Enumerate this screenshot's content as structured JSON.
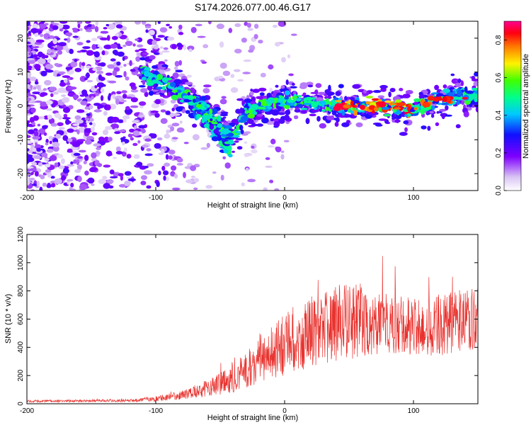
{
  "title": "S174.2026.077.00.46.G17",
  "chart_data": [
    {
      "type": "heatmap",
      "name": "spectrogram",
      "xlabel": "Height of straight line (km)",
      "ylabel": "Frequency (Hz)",
      "xlim": [
        -200,
        150
      ],
      "ylim": [
        -25,
        25
      ],
      "x_ticks": [
        -200,
        -100,
        0,
        100
      ],
      "y_ticks": [
        -20,
        -10,
        0,
        10,
        20
      ],
      "colorbar": {
        "label": "Normalized spectral amplitude",
        "range": [
          0,
          0.9
        ],
        "ticks": [
          0,
          0.2,
          0.4,
          0.6,
          0.8
        ]
      },
      "ridge": {
        "x": [
          -110,
          -100,
          -90,
          -80,
          -70,
          -60,
          -50,
          -40,
          -30,
          -20,
          0,
          20,
          40,
          60,
          80,
          100,
          120,
          140,
          150
        ],
        "y": [
          10,
          8,
          6,
          4,
          1,
          -2,
          -6,
          -10,
          -2,
          0,
          1,
          1,
          0,
          0,
          0,
          -1,
          2,
          3,
          4
        ]
      },
      "secondary_branch": {
        "x": [
          -70,
          -65,
          -60,
          -55,
          -50,
          -45,
          -42
        ],
        "y": [
          1,
          -1,
          -3,
          -6,
          -9,
          -12,
          -14
        ]
      }
    },
    {
      "type": "line",
      "name": "snr",
      "xlabel": "Height of straight line (km)",
      "ylabel": "SNR (10 * v/v)",
      "xlim": [
        -200,
        150
      ],
      "ylim": [
        0,
        1200
      ],
      "x_ticks": [
        -200,
        -100,
        0,
        100
      ],
      "y_ticks": [
        0,
        200,
        400,
        600,
        800,
        1000,
        1200
      ],
      "color": "#e8322e",
      "envelope": {
        "x": [
          -200,
          -120,
          -100,
          -80,
          -60,
          -40,
          -20,
          0,
          20,
          40,
          60,
          80,
          100,
          120,
          150
        ],
        "mean": [
          18,
          22,
          35,
          60,
          110,
          180,
          300,
          420,
          520,
          560,
          600,
          580,
          540,
          560,
          610
        ],
        "spread": [
          8,
          10,
          20,
          30,
          60,
          100,
          160,
          220,
          260,
          280,
          260,
          220,
          200,
          220,
          220
        ]
      }
    }
  ]
}
